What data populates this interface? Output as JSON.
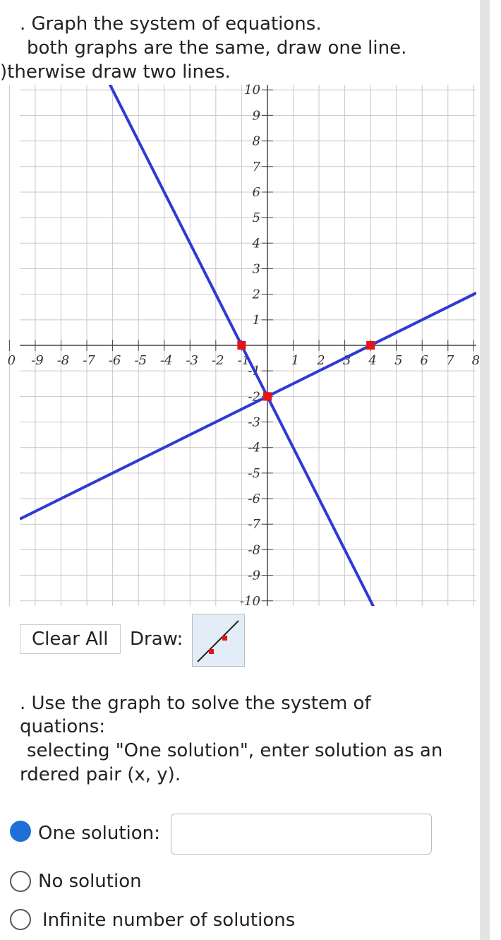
{
  "instructions": [
    ". Graph the system of equations.",
    "both graphs are the same, draw one line.",
    ")therwise draw two lines."
  ],
  "graph": {
    "xlim": [
      -9.6,
      8.1
    ],
    "ylim": [
      -10.2,
      10.2
    ],
    "xticks": [
      {
        "value": -10,
        "label": "0"
      },
      -9,
      -8,
      -7,
      -6,
      -5,
      -4,
      -3,
      -2,
      -1,
      1,
      2,
      3,
      4,
      5,
      6,
      7,
      8
    ],
    "yticks": [
      -10,
      -9,
      -8,
      -7,
      -6,
      -5,
      -4,
      -3,
      -2,
      -1,
      1,
      2,
      3,
      4,
      5,
      6,
      7,
      8,
      9,
      10
    ],
    "grid": true,
    "line_color": "#2f3ad4",
    "point_color": "#e5121b",
    "lines": [
      {
        "points": [
          [
            -1,
            0
          ],
          [
            0,
            -2
          ]
        ]
      },
      {
        "points": [
          [
            0,
            -2
          ],
          [
            4,
            0
          ]
        ]
      }
    ]
  },
  "toolbar": {
    "clear": "Clear All",
    "draw": "Draw:"
  },
  "question": [
    ". Use the graph to solve the system of",
    "quations:",
    "selecting \"One solution\", enter solution as an",
    "rdered pair (x, y)."
  ],
  "options": [
    "One solution:",
    "No solution",
    "Infinite number of solutions"
  ]
}
